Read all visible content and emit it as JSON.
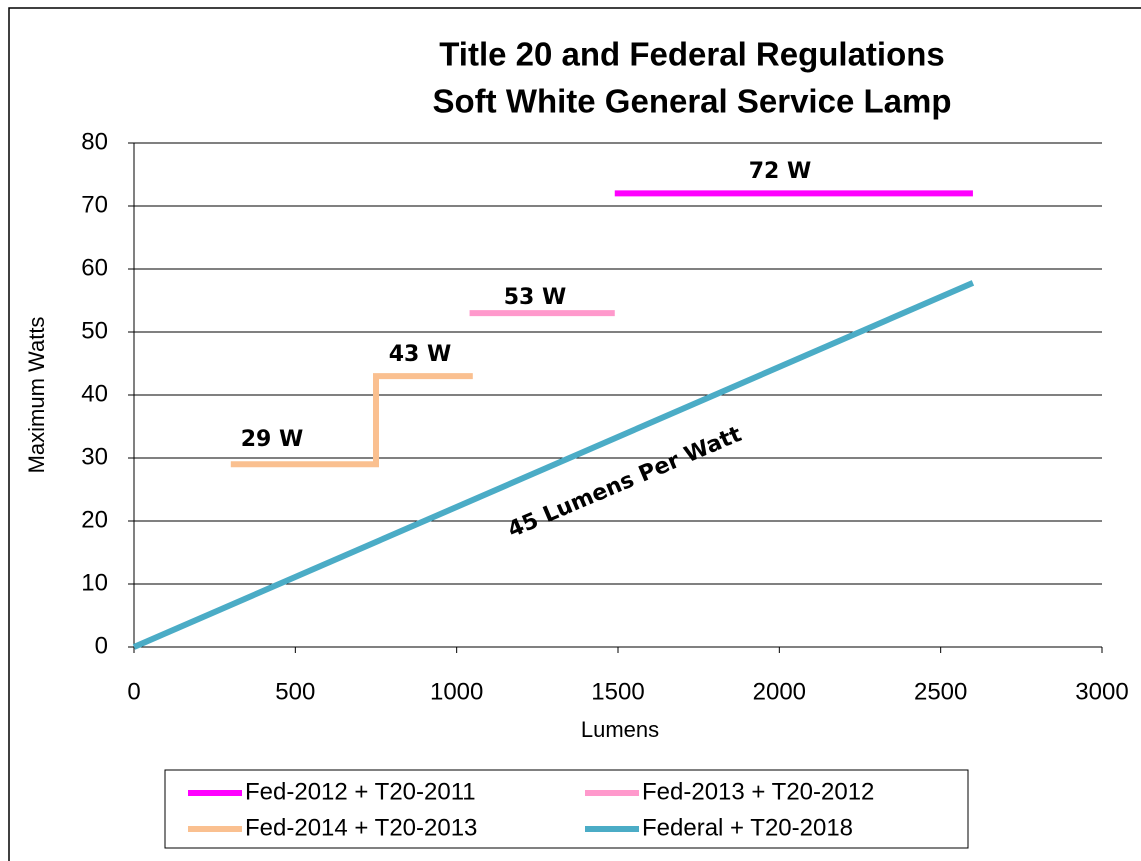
{
  "chart_data": {
    "type": "line",
    "title": [
      "Title 20 and Federal Regulations",
      "Soft White General Service Lamp"
    ],
    "x_label": "Lumens",
    "y_label": "Maximum Watts",
    "xlim": [
      0,
      3000
    ],
    "xticks": [
      0,
      500,
      1000,
      1500,
      2000,
      2500,
      3000
    ],
    "ylim": [
      0,
      80
    ],
    "yticks": [
      0,
      10,
      20,
      30,
      40,
      50,
      60,
      70,
      80
    ],
    "grid": true,
    "legend": "bottom",
    "series": [
      {
        "name": "Fed-2012 + T20-2011",
        "color": "#ff00ff",
        "x": [
          1490,
          2600
        ],
        "values": [
          72,
          72
        ]
      },
      {
        "name": "Fed-2013 + T20-2012",
        "color": "#ff99cc",
        "x": [
          1040,
          1490
        ],
        "values": [
          53,
          53
        ]
      },
      {
        "name": "Fed-2014 + T20-2013",
        "color": "#fac090",
        "x": [
          300,
          750,
          750,
          1050
        ],
        "values": [
          29,
          29,
          43,
          43
        ]
      },
      {
        "name": "Federal + T20-2018",
        "color": "#4bacc6",
        "x": [
          0,
          2600
        ],
        "values": [
          0,
          57.8
        ]
      }
    ],
    "annotations": [
      "72 W",
      "53 W",
      "43 W",
      "29 W",
      "45 Lumens Per Watt"
    ]
  }
}
